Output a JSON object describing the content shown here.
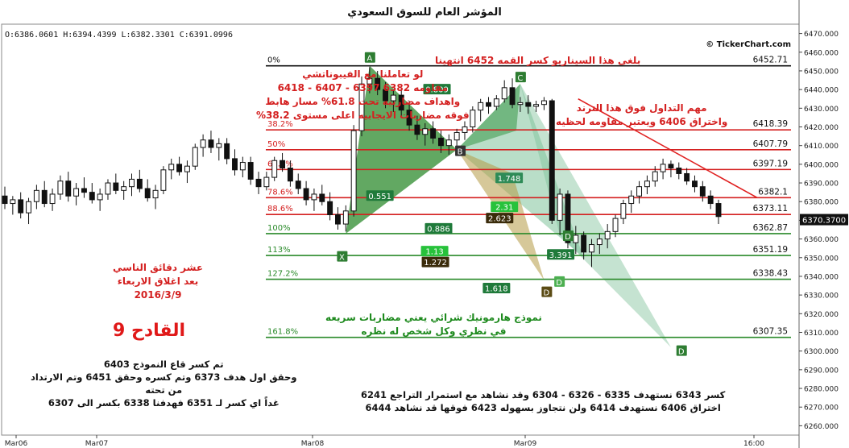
{
  "title": "المؤشر العام للسوق السعودي",
  "ohlc": "O:6386.0601 H:6394.4399 L:6382.3301 C:6391.0996",
  "brand": "© TickerChart.com",
  "price_badge": "6370.3700",
  "chart_data": {
    "type": "candlestick",
    "y_axis": {
      "min": 6255,
      "max": 6475,
      "ticks": [
        6260,
        6270,
        6280,
        6290,
        6300,
        6310,
        6320,
        6330,
        6340,
        6350,
        6360,
        6370,
        6380,
        6390,
        6400,
        6410,
        6420,
        6430,
        6440,
        6450,
        6460,
        6470
      ]
    },
    "x_labels": [
      "Mar06",
      "Mar07",
      "Mar08",
      "Mar09",
      "16:00"
    ],
    "candles": [
      [
        6383,
        6388,
        6376,
        6379
      ],
      [
        6379,
        6383,
        6373,
        6381
      ],
      [
        6381,
        6385,
        6371,
        6374
      ],
      [
        6374,
        6382,
        6368,
        6380
      ],
      [
        6380,
        6389,
        6376,
        6386
      ],
      [
        6386,
        6391,
        6377,
        6379
      ],
      [
        6379,
        6387,
        6375,
        6384
      ],
      [
        6384,
        6394,
        6381,
        6391
      ],
      [
        6391,
        6396,
        6380,
        6383
      ],
      [
        6383,
        6390,
        6378,
        6387
      ],
      [
        6387,
        6393,
        6382,
        6385
      ],
      [
        6385,
        6390,
        6379,
        6381
      ],
      [
        6381,
        6387,
        6375,
        6384
      ],
      [
        6384,
        6392,
        6381,
        6390
      ],
      [
        6390,
        6395,
        6384,
        6386
      ],
      [
        6386,
        6391,
        6381,
        6388
      ],
      [
        6388,
        6395,
        6383,
        6392
      ],
      [
        6392,
        6397,
        6385,
        6387
      ],
      [
        6387,
        6392,
        6380,
        6382
      ],
      [
        6382,
        6389,
        6376,
        6386
      ],
      [
        6386,
        6399,
        6384,
        6397
      ],
      [
        6397,
        6403,
        6392,
        6400
      ],
      [
        6400,
        6404,
        6394,
        6396
      ],
      [
        6396,
        6402,
        6390,
        6399
      ],
      [
        6399,
        6411,
        6397,
        6409
      ],
      [
        6409,
        6416,
        6404,
        6413
      ],
      [
        6413,
        6418,
        6406,
        6409
      ],
      [
        6409,
        6414,
        6402,
        6411
      ],
      [
        6411,
        6414,
        6400,
        6403
      ],
      [
        6403,
        6408,
        6394,
        6397
      ],
      [
        6397,
        6404,
        6393,
        6401
      ],
      [
        6401,
        6404,
        6389,
        6392
      ],
      [
        6392,
        6396,
        6384,
        6388
      ],
      [
        6388,
        6396,
        6386,
        6393
      ],
      [
        6393,
        6404,
        6391,
        6402
      ],
      [
        6402,
        6406,
        6396,
        6398
      ],
      [
        6398,
        6402,
        6388,
        6391
      ],
      [
        6391,
        6395,
        6384,
        6387
      ],
      [
        6387,
        6391,
        6378,
        6381
      ],
      [
        6381,
        6387,
        6375,
        6384
      ],
      [
        6384,
        6389,
        6378,
        6380
      ],
      [
        6380,
        6385,
        6370,
        6373
      ],
      [
        6373,
        6377,
        6365,
        6368
      ],
      [
        6368,
        6378,
        6364,
        6375
      ],
      [
        6375,
        6421,
        6372,
        6418
      ],
      [
        6418,
        6447,
        6415,
        6443
      ],
      [
        6443,
        6452,
        6438,
        6446
      ],
      [
        6446,
        6450,
        6437,
        6440
      ],
      [
        6440,
        6444,
        6430,
        6434
      ],
      [
        6434,
        6440,
        6428,
        6437
      ],
      [
        6437,
        6441,
        6426,
        6429
      ],
      [
        6429,
        6434,
        6418,
        6421
      ],
      [
        6421,
        6426,
        6413,
        6416
      ],
      [
        6416,
        6422,
        6410,
        6419
      ],
      [
        6419,
        6423,
        6411,
        6414
      ],
      [
        6414,
        6418,
        6406,
        6410
      ],
      [
        6410,
        6416,
        6405,
        6413
      ],
      [
        6413,
        6419,
        6408,
        6417
      ],
      [
        6417,
        6423,
        6413,
        6420
      ],
      [
        6420,
        6431,
        6417,
        6429
      ],
      [
        6429,
        6435,
        6423,
        6433
      ],
      [
        6433,
        6436,
        6427,
        6431
      ],
      [
        6431,
        6437,
        6429,
        6435
      ],
      [
        6435,
        6445,
        6433,
        6441
      ],
      [
        6441,
        6446,
        6430,
        6432
      ],
      [
        6432,
        6436,
        6428,
        6433
      ],
      [
        6433,
        6437,
        6427,
        6431
      ],
      [
        6431,
        6434,
        6428,
        6432
      ],
      [
        6432,
        6436,
        6429,
        6434
      ],
      [
        6434,
        6435,
        6368,
        6370
      ],
      [
        6370,
        6387,
        6362,
        6384
      ],
      [
        6384,
        6386,
        6355,
        6358
      ],
      [
        6358,
        6367,
        6352,
        6362
      ],
      [
        6362,
        6364,
        6349,
        6353
      ],
      [
        6353,
        6360,
        6345,
        6357
      ],
      [
        6357,
        6363,
        6352,
        6360
      ],
      [
        6360,
        6368,
        6355,
        6364
      ],
      [
        6364,
        6373,
        6361,
        6371
      ],
      [
        6371,
        6381,
        6368,
        6379
      ],
      [
        6379,
        6386,
        6374,
        6383
      ],
      [
        6383,
        6391,
        6379,
        6388
      ],
      [
        6388,
        6394,
        6384,
        6391
      ],
      [
        6391,
        6399,
        6388,
        6396
      ],
      [
        6396,
        6403,
        6392,
        6400
      ],
      [
        6400,
        6402,
        6393,
        6398
      ],
      [
        6398,
        6401,
        6392,
        6395
      ],
      [
        6395,
        6398,
        6389,
        6391
      ],
      [
        6391,
        6394,
        6385,
        6388
      ],
      [
        6388,
        6391,
        6380,
        6383
      ],
      [
        6383,
        6386,
        6376,
        6379
      ],
      [
        6379,
        6381,
        6368,
        6372
      ]
    ],
    "fib_levels": [
      {
        "ratio": "0%",
        "price": "6452.71",
        "value": 6452.71,
        "color": "#111111"
      },
      {
        "ratio": "38.2%",
        "price": "6418.39",
        "value": 6418.39,
        "color": "#d42020"
      },
      {
        "ratio": "50%",
        "price": "6407.79",
        "value": 6407.79,
        "color": "#d42020"
      },
      {
        "ratio": "61.8%",
        "price": "6397.19",
        "value": 6397.19,
        "color": "#d42020"
      },
      {
        "ratio": "78.6%",
        "price": "6382.1",
        "value": 6382.1,
        "color": "#d42020"
      },
      {
        "ratio": "88.6%",
        "price": "6373.11",
        "value": 6373.11,
        "color": "#d42020"
      },
      {
        "ratio": "100%",
        "price": "6362.87",
        "value": 6362.87,
        "color": "#2a8a2a"
      },
      {
        "ratio": "113%",
        "price": "6351.19",
        "value": 6351.19,
        "color": "#2a8a2a"
      },
      {
        "ratio": "127.2%",
        "price": "6338.43",
        "value": 6338.43,
        "color": "#2a8a2a"
      },
      {
        "ratio": "161.8%",
        "price": "6307.35",
        "value": 6307.35,
        "color": "#2a8a2a"
      }
    ],
    "pattern_points": {
      "X": "X",
      "A": "A",
      "B": "B",
      "C": "C",
      "D": "D"
    },
    "ratio_boxes": [
      "0.809",
      "0.551",
      "0.886",
      "1.748",
      "2.31",
      "2.623",
      "3.391",
      "1.13",
      "1.272",
      "1.618"
    ]
  },
  "notes": {
    "fib_note": [
      "لو تعاملنا مع الفيبوناتشي",
      "مقاومه 6382 6397 - 6407 - 6418",
      "واهداف مضاربيه تحت 61.8% مسار هابط",
      "فوقه مضاربات الايجابيه اعلى مستوى 38.2%"
    ],
    "scenario_note": "بلغى هذا السيناريو كسر القمه 6452 انتهينا",
    "trend_note": [
      "مهم التداول فوق هذا الترند",
      "واختراق 6406 ويعتبر مقاومه لحظيه"
    ],
    "date_note": [
      "عشر دقائق الناسي",
      "بعد اغلاق الاربعاء",
      "2016/3/9"
    ],
    "big_label": "القادح 9",
    "harmonic_note": [
      "نموذج هارمونيك شرائي يعني مضاربات سريعه",
      "في نظري وكل شخص له نظره"
    ],
    "bottom_left_note": [
      "تم كسر قاع النموذج 6403",
      "وحقق اول هدف 6373 وتم كسره وحقق 6451 وتم الارتداد",
      "من تحته",
      "غداً اي كسر لـ 6351 فهدفنا 6338 بكسر الى 6307"
    ],
    "bottom_right_note": [
      "كسر 6343 نستهدف 6335 - 6326 - 6304 وقد نشاهد مع استمرار التراجع 6241",
      "اختراق 6406 نستهدف 6414 ولن نتجاوز بسهوله 6423 فوقها قد نشاهد 6444"
    ]
  },
  "colors": {
    "up": "#ffffff",
    "down": "#111111",
    "pattern_green": "#2e8b2e",
    "pattern_light": "#7fc29a",
    "pattern_tan": "#b59a45",
    "trend": "#e02020"
  }
}
